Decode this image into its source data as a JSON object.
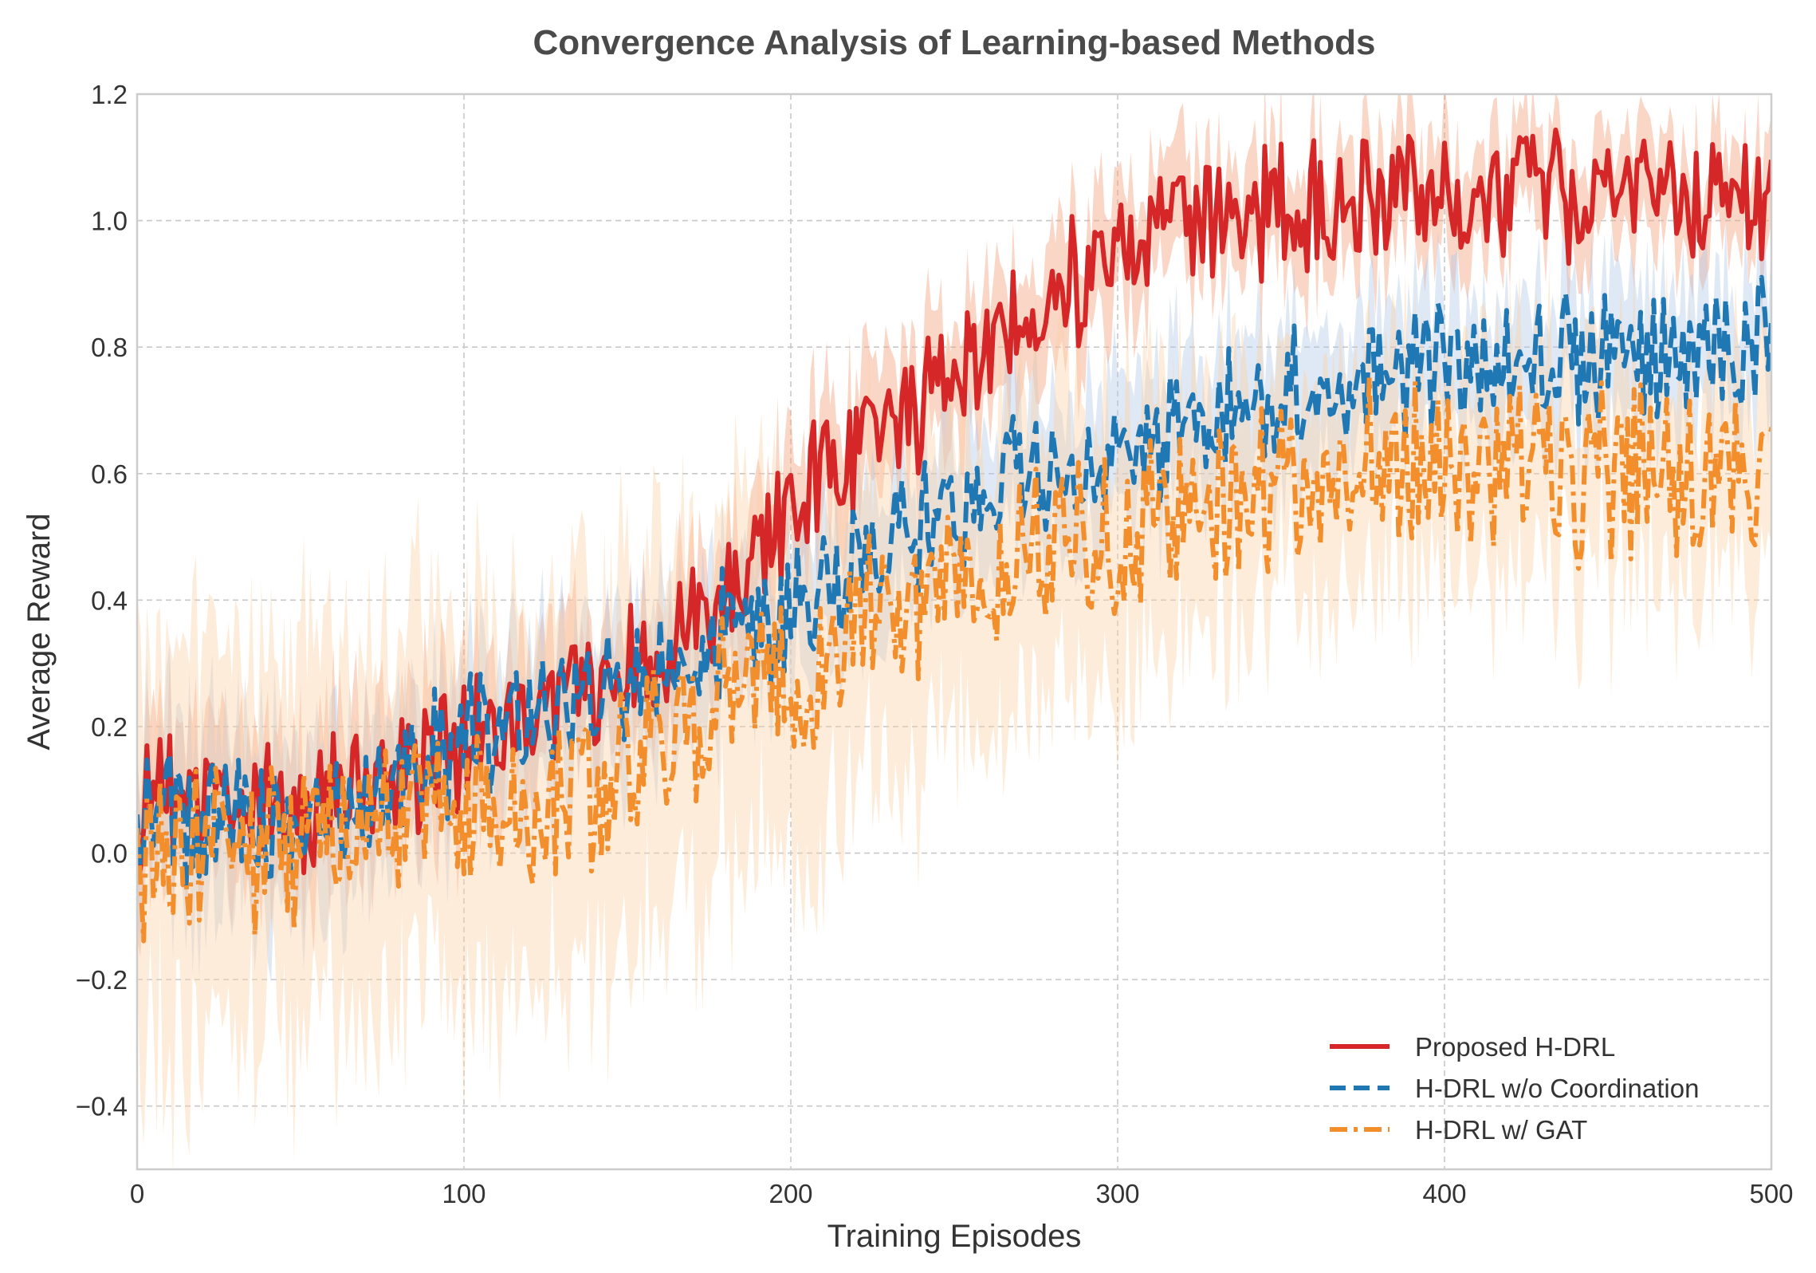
{
  "chart_data": {
    "type": "line",
    "title": "Convergence Analysis of Learning-based Methods",
    "xlabel": "Training Episodes",
    "ylabel": "Average Reward",
    "xlim": [
      0,
      500
    ],
    "ylim": [
      -0.5,
      1.2
    ],
    "xticks": [
      0,
      100,
      200,
      300,
      400,
      500
    ],
    "yticks": [
      -0.4,
      -0.2,
      0.0,
      0.2,
      0.4,
      0.6,
      0.8,
      1.0,
      1.2
    ],
    "xtick_labels": [
      "0",
      "100",
      "200",
      "300",
      "400",
      "500"
    ],
    "ytick_labels": [
      "−0.4",
      "−0.2",
      "0.0",
      "0.2",
      "0.4",
      "0.6",
      "0.8",
      "1.0",
      "1.2"
    ],
    "grid": true,
    "legend_position": "bottom-right",
    "series": [
      {
        "name": "Proposed H-DRL",
        "color": "#d62728",
        "band_color": "#f4a582",
        "style": "solid",
        "x": [
          0,
          25,
          50,
          75,
          100,
          125,
          150,
          175,
          200,
          225,
          250,
          275,
          300,
          325,
          350,
          375,
          400,
          425,
          450,
          475,
          500
        ],
        "y": [
          0.08,
          0.08,
          0.06,
          0.1,
          0.18,
          0.25,
          0.28,
          0.4,
          0.55,
          0.65,
          0.75,
          0.87,
          0.93,
          0.98,
          1.02,
          1.03,
          1.04,
          1.04,
          1.05,
          1.05,
          1.04
        ],
        "noise": 0.055,
        "band": [
          0.12,
          0.12,
          0.12,
          0.12,
          0.11,
          0.1,
          0.1,
          0.1,
          0.1,
          0.1,
          0.1,
          0.1,
          0.1,
          0.09,
          0.09,
          0.09,
          0.09,
          0.08,
          0.08,
          0.08,
          0.08
        ]
      },
      {
        "name": "H-DRL w/o Coordination",
        "color": "#1f77b4",
        "band_color": "#aec7e8",
        "style": "dashed",
        "x": [
          0,
          25,
          50,
          75,
          100,
          125,
          150,
          175,
          200,
          225,
          250,
          275,
          300,
          325,
          350,
          375,
          400,
          425,
          450,
          475,
          500
        ],
        "y": [
          0.04,
          0.06,
          0.05,
          0.1,
          0.17,
          0.23,
          0.26,
          0.33,
          0.38,
          0.46,
          0.55,
          0.6,
          0.63,
          0.68,
          0.72,
          0.75,
          0.77,
          0.78,
          0.78,
          0.79,
          0.79
        ],
        "noise": 0.055,
        "band": [
          0.14,
          0.14,
          0.14,
          0.13,
          0.12,
          0.12,
          0.12,
          0.12,
          0.12,
          0.12,
          0.12,
          0.12,
          0.12,
          0.12,
          0.12,
          0.11,
          0.11,
          0.11,
          0.11,
          0.11,
          0.11
        ]
      },
      {
        "name": "H-DRL w/ GAT",
        "color": "#f28e2b",
        "band_color": "#fdd0a2",
        "style": "dashdot",
        "x": [
          0,
          25,
          50,
          75,
          100,
          125,
          150,
          175,
          200,
          225,
          250,
          275,
          300,
          325,
          350,
          375,
          400,
          425,
          450,
          475,
          500
        ],
        "y": [
          0.0,
          0.0,
          0.02,
          0.04,
          0.06,
          0.05,
          0.16,
          0.22,
          0.28,
          0.37,
          0.43,
          0.48,
          0.5,
          0.55,
          0.58,
          0.6,
          0.6,
          0.59,
          0.6,
          0.6,
          0.6
        ],
        "noise": 0.075,
        "band": [
          0.32,
          0.32,
          0.32,
          0.32,
          0.3,
          0.3,
          0.3,
          0.3,
          0.28,
          0.26,
          0.26,
          0.24,
          0.22,
          0.2,
          0.18,
          0.18,
          0.17,
          0.17,
          0.17,
          0.17,
          0.17
        ]
      }
    ]
  }
}
